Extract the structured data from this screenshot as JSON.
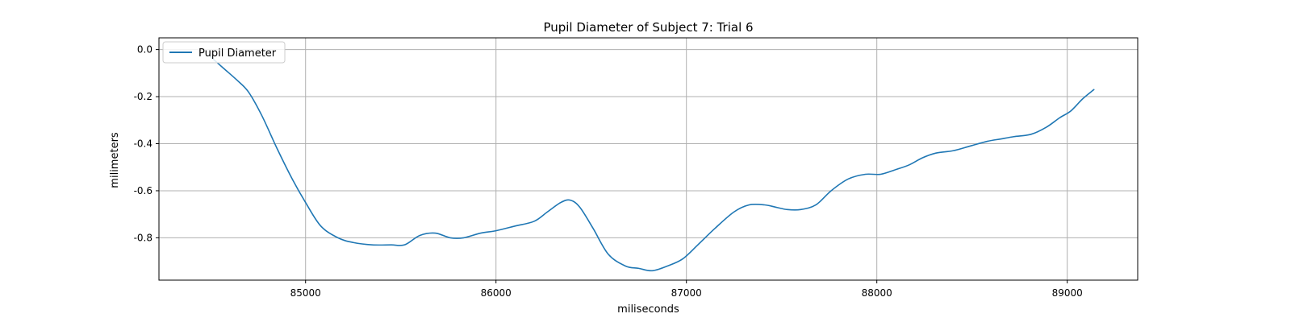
{
  "chart_data": {
    "type": "line",
    "title": "Pupil Diameter of Subject 7: Trial 6",
    "xlabel": "miliseconds",
    "ylabel": "milimeters",
    "xlim": [
      84230,
      89370
    ],
    "ylim": [
      -0.98,
      0.05
    ],
    "xticks": [
      85000,
      86000,
      87000,
      88000,
      89000
    ],
    "yticks": [
      0.0,
      -0.2,
      -0.4,
      -0.6,
      -0.8
    ],
    "grid": true,
    "legend_position": "top-left",
    "series": [
      {
        "name": "Pupil Diameter",
        "color": "#1f77b4",
        "x": [
          84500,
          84570,
          84640,
          84700,
          84770,
          84850,
          84930,
          85000,
          85080,
          85170,
          85250,
          85350,
          85450,
          85520,
          85600,
          85680,
          85760,
          85830,
          85920,
          86000,
          86100,
          86200,
          86270,
          86340,
          86390,
          86440,
          86510,
          86590,
          86680,
          86750,
          86820,
          86900,
          86980,
          87060,
          87150,
          87250,
          87330,
          87410,
          87470,
          87530,
          87600,
          87680,
          87760,
          87850,
          87940,
          88020,
          88100,
          88170,
          88240,
          88310,
          88400,
          88490,
          88580,
          88650,
          88720,
          88810,
          88890,
          88960,
          89020,
          89080,
          89140
        ],
        "y": [
          -0.03,
          -0.08,
          -0.13,
          -0.18,
          -0.28,
          -0.42,
          -0.55,
          -0.65,
          -0.75,
          -0.8,
          -0.82,
          -0.83,
          -0.83,
          -0.83,
          -0.79,
          -0.78,
          -0.8,
          -0.8,
          -0.78,
          -0.77,
          -0.75,
          -0.73,
          -0.69,
          -0.65,
          -0.64,
          -0.67,
          -0.76,
          -0.87,
          -0.92,
          -0.93,
          -0.94,
          -0.92,
          -0.89,
          -0.83,
          -0.76,
          -0.69,
          -0.66,
          -0.66,
          -0.67,
          -0.68,
          -0.68,
          -0.66,
          -0.6,
          -0.55,
          -0.53,
          -0.53,
          -0.51,
          -0.49,
          -0.46,
          -0.44,
          -0.43,
          -0.41,
          -0.39,
          -0.38,
          -0.37,
          -0.36,
          -0.33,
          -0.29,
          -0.26,
          -0.21,
          -0.17
        ]
      }
    ]
  }
}
